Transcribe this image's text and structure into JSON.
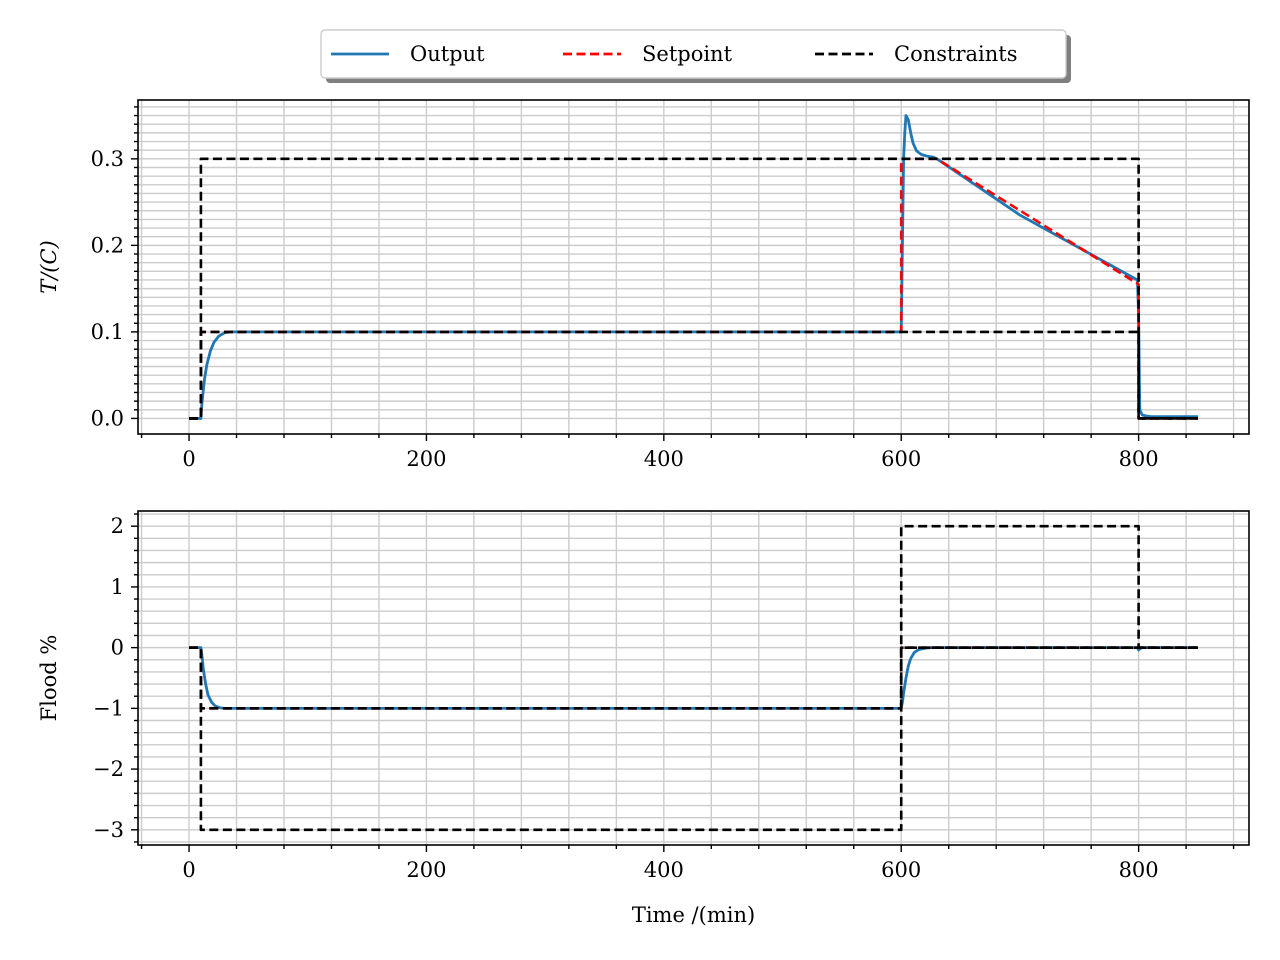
{
  "legend": {
    "items": [
      {
        "label": "Output",
        "color": "#1f77b4",
        "style": "solid"
      },
      {
        "label": "Setpoint",
        "color": "#ff0000",
        "style": "dashed"
      },
      {
        "label": "Constraints",
        "color": "#000000",
        "style": "dashed"
      }
    ],
    "placement": "top-center"
  },
  "chart_data": [
    {
      "type": "line",
      "ylabel": "T/(C)",
      "xlabel": "",
      "xlim": [
        -43,
        893
      ],
      "ylim": [
        -0.018,
        0.368
      ],
      "xticks": [
        0,
        200,
        400,
        600,
        800
      ],
      "xtick_labels": [
        "0",
        "200",
        "400",
        "600",
        "800"
      ],
      "yticks": [
        0.0,
        0.1,
        0.2,
        0.3
      ],
      "ytick_labels": [
        "0.0",
        "0.1",
        "0.2",
        "0.3"
      ],
      "grid": true,
      "series": [
        {
          "name": "Output",
          "color": "#1f77b4",
          "dash": "solid",
          "x": [
            0,
            10,
            11,
            13,
            15,
            18,
            21,
            25,
            30,
            35,
            40,
            100,
            300,
            599,
            600,
            601,
            602,
            603,
            604,
            606,
            608,
            610,
            613,
            617,
            622,
            627,
            630,
            700,
            799,
            800,
            800.5,
            801,
            803,
            806,
            810,
            850
          ],
          "y": [
            0,
            0,
            0.02,
            0.045,
            0.062,
            0.078,
            0.088,
            0.095,
            0.099,
            0.1,
            0.1,
            0.1,
            0.1,
            0.1,
            0.1,
            0.2,
            0.3,
            0.33,
            0.35,
            0.345,
            0.33,
            0.318,
            0.309,
            0.305,
            0.303,
            0.302,
            0.3,
            0.235,
            0.16,
            0.12,
            0.06,
            0.01,
            0.004,
            0.003,
            0.002,
            0.002
          ]
        },
        {
          "name": "Setpoint",
          "color": "#ff0000",
          "dash": "dashed",
          "x": [
            0,
            10,
            10,
            600,
            600,
            630,
            800,
            800,
            850
          ],
          "y": [
            0,
            0,
            0.1,
            0.1,
            0.3,
            0.3,
            0.155,
            0,
            0
          ]
        },
        {
          "name": "Constraints",
          "color": "#000000",
          "dash": "dashed",
          "x": [
            0,
            10,
            10,
            800,
            800,
            850
          ],
          "y": [
            0,
            0,
            0.3,
            0.3,
            0,
            0
          ]
        },
        {
          "name": "",
          "color": "#000000",
          "dash": "dashed",
          "x": [
            0,
            10,
            10,
            800,
            800,
            850
          ],
          "y": [
            0,
            0,
            0.1,
            0.1,
            0,
            0
          ]
        }
      ]
    },
    {
      "type": "line",
      "ylabel": "Flood %",
      "xlabel": "Time /(min)",
      "xlim": [
        -43,
        893
      ],
      "ylim": [
        -3.25,
        2.25
      ],
      "xticks": [
        0,
        200,
        400,
        600,
        800
      ],
      "xtick_labels": [
        "0",
        "200",
        "400",
        "600",
        "800"
      ],
      "yticks": [
        -3,
        -2,
        -1,
        0,
        1,
        2
      ],
      "ytick_labels": [
        "−3",
        "−2",
        "−1",
        "0",
        "1",
        "2"
      ],
      "grid": true,
      "series": [
        {
          "name": "Output",
          "color": "#1f77b4",
          "dash": "solid",
          "x": [
            0,
            10,
            11,
            12,
            14,
            16,
            19,
            22,
            26,
            30,
            40,
            300,
            600,
            601,
            602,
            604,
            606,
            608,
            611,
            615,
            620,
            625,
            700,
            799,
            800,
            801,
            803,
            806,
            850
          ],
          "y": [
            0,
            0,
            -0.15,
            -0.35,
            -0.6,
            -0.78,
            -0.9,
            -0.96,
            -0.99,
            -1.0,
            -1.0,
            -1.0,
            -1.0,
            -0.9,
            -0.75,
            -0.5,
            -0.3,
            -0.18,
            -0.08,
            -0.03,
            -0.01,
            0,
            0,
            0,
            -0.04,
            -0.02,
            0,
            0,
            0
          ]
        },
        {
          "name": "Setpoint",
          "color": "#ff0000",
          "dash": "dashed",
          "x": [
            0,
            10,
            10,
            600,
            600,
            800,
            800,
            850
          ],
          "y": [
            0,
            0,
            -1,
            -1,
            0,
            0,
            0,
            0
          ]
        },
        {
          "name": "Constraints",
          "color": "#000000",
          "dash": "dashed",
          "x": [
            0,
            10,
            10,
            600,
            600,
            800,
            800,
            850
          ],
          "y": [
            0,
            0,
            -1,
            -1,
            2,
            2,
            0,
            0
          ]
        },
        {
          "name": "",
          "color": "#000000",
          "dash": "dashed",
          "x": [
            0,
            10,
            10,
            600,
            600,
            850
          ],
          "y": [
            0,
            0,
            -3,
            -3,
            0,
            0
          ]
        },
        {
          "name": "",
          "color": "#000000",
          "dash": "dashed",
          "x": [
            600,
            600,
            850
          ],
          "y": [
            -1,
            0,
            0
          ]
        }
      ]
    }
  ]
}
